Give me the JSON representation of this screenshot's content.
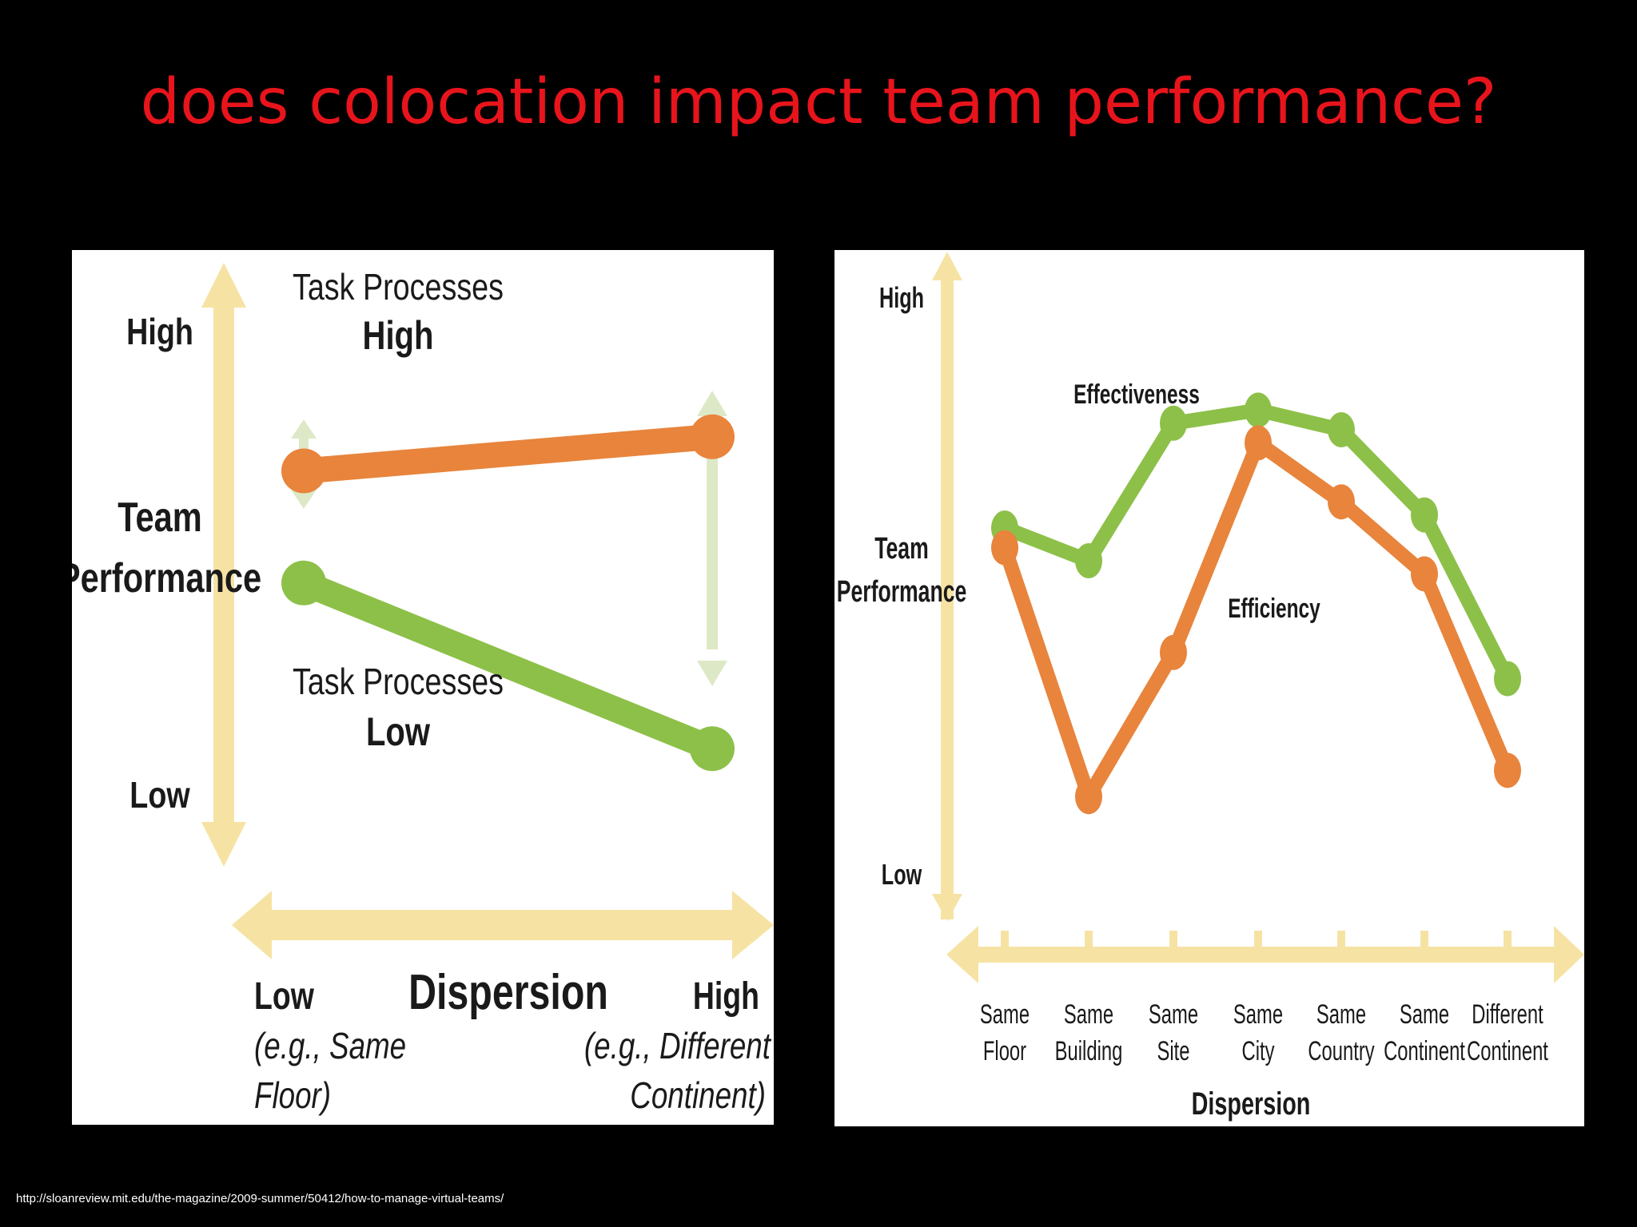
{
  "slide": {
    "title": "does colocation impact team performance?",
    "source_url": "http://sloanreview.mit.edu/the-magazine/2009-summer/50412/how-to-manage-virtual-teams/"
  },
  "colors": {
    "title": "#e8141c",
    "orange": "#e8843c",
    "green": "#8dc049",
    "arrow": "#f6e3a4",
    "pale_green_arrow": "#dde9c6"
  },
  "left_chart": {
    "y_axis": {
      "high": "High",
      "low": "Low",
      "title_line1": "Team",
      "title_line2": "Performance"
    },
    "x_axis": {
      "title": "Dispersion",
      "low": "Low",
      "low_example_line1": "(e.g., Same",
      "low_example_line2": "Floor)",
      "high": "High",
      "high_example_line1": "(e.g., Different",
      "high_example_line2": "Continent)"
    },
    "labels": {
      "high_line1": "Task Processes",
      "high_line2": "High",
      "low_line1": "Task Processes",
      "low_line2": "Low"
    }
  },
  "right_chart": {
    "y_axis": {
      "high": "High",
      "low": "Low",
      "title_line1": "Team",
      "title_line2": "Performance"
    },
    "x_title": "Dispersion",
    "categories": [
      [
        "Same",
        "Floor"
      ],
      [
        "Same",
        "Building"
      ],
      [
        "Same",
        "Site"
      ],
      [
        "Same",
        "City"
      ],
      [
        "Same",
        "Country"
      ],
      [
        "Same",
        "Continent"
      ],
      [
        "Different",
        "Continent"
      ]
    ],
    "labels": {
      "effectiveness": "Effectiveness",
      "efficiency": "Efficiency"
    }
  },
  "chart_data": [
    {
      "type": "line",
      "x": [
        "Low",
        "High"
      ],
      "series": [
        {
          "name": "Task Processes High",
          "values": [
            0.65,
            0.72
          ],
          "color": "#e8843c"
        },
        {
          "name": "Task Processes Low",
          "values": [
            0.42,
            0.08
          ],
          "color": "#8dc049"
        }
      ],
      "ylim": [
        0,
        1
      ],
      "xlabel": "Dispersion",
      "ylabel": "Team Performance"
    },
    {
      "type": "line",
      "categories": [
        "Same Floor",
        "Same Building",
        "Same Site",
        "Same City",
        "Same Country",
        "Same Continent",
        "Different Continent"
      ],
      "series": [
        {
          "name": "Effectiveness",
          "values": [
            0.6,
            0.55,
            0.76,
            0.78,
            0.75,
            0.62,
            0.37
          ],
          "color": "#8dc049"
        },
        {
          "name": "Efficiency",
          "values": [
            0.57,
            0.19,
            0.41,
            0.73,
            0.64,
            0.53,
            0.23
          ],
          "color": "#e8843c"
        }
      ],
      "ylim": [
        0,
        1
      ],
      "xlabel": "Dispersion",
      "ylabel": "Team Performance"
    }
  ]
}
